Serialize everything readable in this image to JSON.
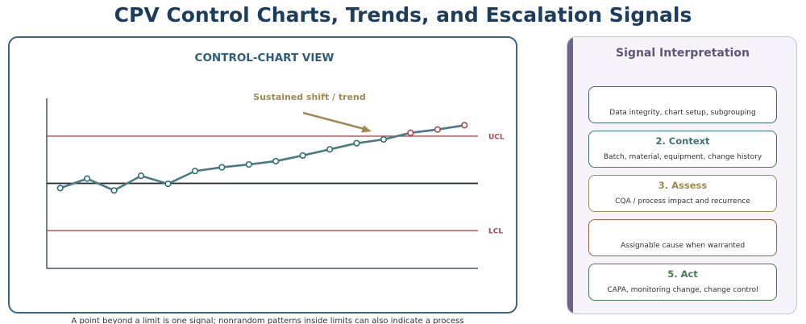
{
  "title": "CPV Control Charts, Trends, and Escalation Signals",
  "chart_panel": {
    "heading": "CONTROL-CHART VIEW",
    "annotation": "Sustained shift / trend",
    "caption": "A point beyond a limit is one signal; nonrandom patterns inside limits can also indicate a process change."
  },
  "chart_data": {
    "type": "line",
    "title": "",
    "xlabel": "",
    "ylabel": "",
    "x": [
      1,
      2,
      3,
      4,
      5,
      6,
      7,
      8,
      9,
      10,
      11,
      12,
      13,
      14,
      15,
      16
    ],
    "series": [
      {
        "values": [
          -0.1,
          0.1,
          -0.15,
          0.16,
          -0.01,
          0.26,
          0.34,
          0.4,
          0.47,
          0.59,
          0.72,
          0.85,
          0.93,
          1.07,
          1.14,
          1.23
        ]
      }
    ],
    "center_line": 0,
    "limits": [
      {
        "name": "UCL",
        "value": 1.0
      },
      {
        "name": "LCL",
        "value": -1.0
      }
    ],
    "ylim": [
      -1.8,
      1.8
    ],
    "xlim": [
      0.5,
      16.5
    ],
    "grid": false,
    "legend": "none",
    "colors": {
      "series": "#4a7a82",
      "in_limit_marker": "#2f6f75",
      "out_of_limit_marker": "#a74a4a",
      "limit_line": "#a74a4a",
      "center_line": "#1f2a33",
      "annotation": "#9d8a52"
    }
  },
  "signal_panel": {
    "title": "Signal Interpretation",
    "steps": [
      {
        "title": "",
        "desc": "Data integrity, chart setup, subgrouping",
        "color": "#3e6584"
      },
      {
        "title": "2. Context",
        "desc": "Batch, material, equipment, change history",
        "color": "#3f7374"
      },
      {
        "title": "3. Assess",
        "desc": "CQA / process impact and recurrence",
        "color": "#9d8a52"
      },
      {
        "title": "",
        "desc": "Assignable cause when warranted",
        "color": "#a15f43"
      },
      {
        "title": "5. Act",
        "desc": "CAPA, monitoring change, change control",
        "color": "#4a7a52"
      }
    ]
  }
}
